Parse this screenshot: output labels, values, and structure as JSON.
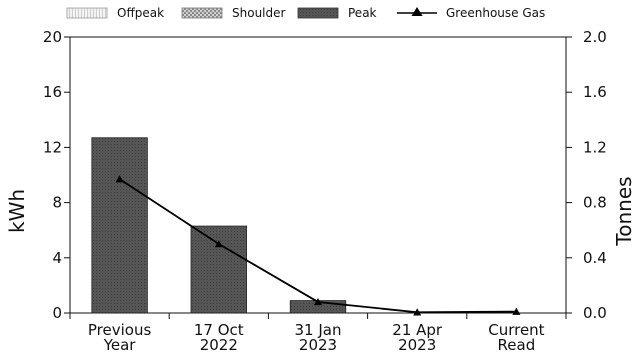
{
  "chart_data": {
    "type": "bar",
    "categories": [
      [
        "Previous",
        "Year"
      ],
      [
        "17 Oct",
        "2022"
      ],
      [
        "31 Jan",
        "2023"
      ],
      [
        "21 Apr",
        "2023"
      ],
      [
        "Current",
        "Read"
      ]
    ],
    "series": [
      {
        "name": "Offpeak",
        "type": "bar",
        "values": [
          0,
          0,
          0,
          0,
          0
        ],
        "color": "#e6e6e6"
      },
      {
        "name": "Shoulder",
        "type": "bar",
        "values": [
          0,
          0,
          0,
          0,
          0
        ],
        "color": "#b0b0b0"
      },
      {
        "name": "Peak",
        "type": "bar",
        "values": [
          12.7,
          6.3,
          0.9,
          0.0,
          0.0
        ],
        "color": "#4d4d4d"
      },
      {
        "name": "Greenhouse Gas",
        "type": "line",
        "axis": "right",
        "values": [
          0.97,
          0.5,
          0.08,
          0.005,
          0.01
        ],
        "color": "#000000"
      }
    ],
    "ylabel": "kWh",
    "y2label": "Tonnes",
    "ylim": [
      0,
      20
    ],
    "y2lim": [
      0,
      2.0
    ],
    "yticks": [
      "0",
      "4",
      "8",
      "12",
      "16",
      "20"
    ],
    "y2ticks": [
      "0.0",
      "0.4",
      "0.8",
      "1.2",
      "1.6",
      "2.0"
    ],
    "legend_position": "top"
  }
}
